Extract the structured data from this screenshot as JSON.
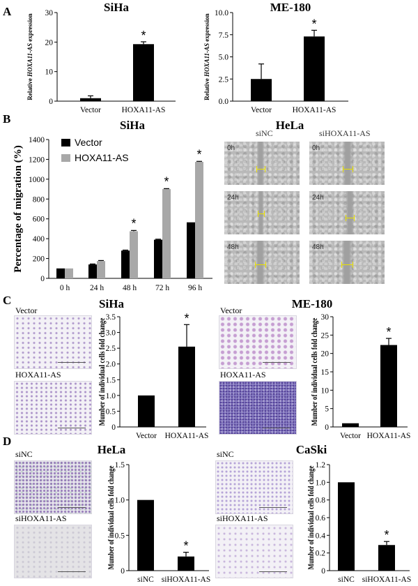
{
  "panels": {
    "A": "A",
    "B": "B",
    "C": "C",
    "D": "D"
  },
  "colors": {
    "bar_black": "#000000",
    "bar_gray": "#a8a8a8",
    "scale_bar": "#e8e000"
  },
  "chart_data": [
    {
      "id": "A1",
      "type": "bar",
      "title": "SiHa",
      "ylabel_parts": [
        "Relative ",
        "HOXA11-AS",
        " expression"
      ],
      "categories": [
        "Vector",
        "HOXA11-AS"
      ],
      "values": [
        1.0,
        19.3
      ],
      "errors": [
        0.8,
        0.8
      ],
      "ylim": [
        0,
        30
      ],
      "yticks": [
        "0",
        "10",
        "20",
        "30"
      ],
      "ytick_values": [
        0,
        10,
        20,
        30
      ],
      "annotations": [
        "",
        "*"
      ]
    },
    {
      "id": "A2",
      "type": "bar",
      "title": "ME-180",
      "ylabel_parts": [
        "Relative ",
        "HOXA11-AS",
        " expression"
      ],
      "categories": [
        "Vector",
        "HOXA11-AS"
      ],
      "values": [
        2.5,
        7.3
      ],
      "errors": [
        1.7,
        0.7
      ],
      "ylim": [
        0,
        10
      ],
      "yticks": [
        "0.0",
        "2.5",
        "5.0",
        "7.5",
        "10.0"
      ],
      "ytick_values": [
        0,
        2.5,
        5,
        7.5,
        10
      ],
      "annotations": [
        "",
        "*"
      ]
    },
    {
      "id": "B1",
      "type": "bar",
      "title": "SiHa",
      "ylabel": "Percentage of migration (%)",
      "categories": [
        "0 h",
        "24 h",
        "48 h",
        "72 h",
        "96 h"
      ],
      "series": [
        {
          "name": "Vector",
          "values": [
            100,
            140,
            280,
            390,
            565
          ],
          "errors": [
            0,
            5,
            5,
            5,
            0
          ]
        },
        {
          "name": "HOXA11-AS",
          "values": [
            100,
            175,
            475,
            900,
            1175
          ],
          "errors": [
            0,
            5,
            8,
            5,
            5
          ]
        }
      ],
      "ylim": [
        0,
        1400
      ],
      "yticks": [
        "0",
        "200",
        "400",
        "600",
        "800",
        "1000",
        "1200",
        "1400"
      ],
      "ytick_values": [
        0,
        200,
        400,
        600,
        800,
        1000,
        1200,
        1400
      ],
      "annotations": [
        "",
        "",
        "*",
        "*",
        "*"
      ],
      "legend": "top-left"
    },
    {
      "id": "C1",
      "type": "bar",
      "title": "SiHa",
      "ylabel": "Mumber of individual cells fold change",
      "categories": [
        "Vector",
        "HOXA11-AS"
      ],
      "values": [
        1.0,
        2.55
      ],
      "errors": [
        0,
        0.7
      ],
      "ylim": [
        0,
        3.5
      ],
      "yticks": [
        "0",
        "0.5",
        "1.0",
        "1.5",
        "2.0",
        "2.5",
        "3.0",
        "3.5"
      ],
      "ytick_values": [
        0,
        0.5,
        1,
        1.5,
        2,
        2.5,
        3,
        3.5
      ],
      "annotations": [
        "",
        "*"
      ]
    },
    {
      "id": "C2",
      "type": "bar",
      "title": "ME-180",
      "ylabel": "Mumber of individual cells fold change",
      "categories": [
        "Vector",
        "HOXA11-AS"
      ],
      "values": [
        1.0,
        22.3
      ],
      "errors": [
        0,
        1.8
      ],
      "ylim": [
        0,
        30
      ],
      "yticks": [
        "0",
        "5",
        "10",
        "15",
        "20",
        "25",
        "30"
      ],
      "ytick_values": [
        0,
        5,
        10,
        15,
        20,
        25,
        30
      ],
      "annotations": [
        "",
        "*"
      ]
    },
    {
      "id": "D1",
      "type": "bar",
      "title": "HeLa",
      "ylabel": "Mumber of individual cells fold change",
      "categories": [
        "siNC",
        "siHOXA11-AS"
      ],
      "values": [
        1.0,
        0.2
      ],
      "errors": [
        0,
        0.06
      ],
      "ylim": [
        0,
        1.5
      ],
      "yticks": [
        "0",
        "0.5",
        "1.0",
        "1.5"
      ],
      "ytick_values": [
        0,
        0.5,
        1.0,
        1.5
      ],
      "annotations": [
        "",
        "*"
      ]
    },
    {
      "id": "D2",
      "type": "bar",
      "title": "CaSki",
      "ylabel": "Mumber of individual cells fold change",
      "categories": [
        "siNC",
        "siHOXA11-AS"
      ],
      "values": [
        1.0,
        0.29
      ],
      "errors": [
        0,
        0.04
      ],
      "ylim": [
        0,
        1.2
      ],
      "yticks": [
        "0",
        "0.2",
        "0.4",
        "0.6",
        "0.8",
        "1.0",
        "1.2"
      ],
      "ytick_values": [
        0,
        0.2,
        0.4,
        0.6,
        0.8,
        1.0,
        1.2
      ],
      "annotations": [
        "",
        "*"
      ]
    }
  ],
  "wound_assay": {
    "title": "HeLa",
    "columns": [
      "siNC",
      "siHOXA11-AS"
    ],
    "rows": [
      "0h",
      "24h",
      "48h"
    ]
  },
  "micrographs": {
    "C_left": [
      "Vector",
      "HOXA11-AS"
    ],
    "C_right": [
      "Vector",
      "HOXA11-AS"
    ],
    "D_left": [
      "siNC",
      "siHOXA11-AS"
    ],
    "D_right": [
      "siNC",
      "siHOXA11-AS"
    ]
  }
}
